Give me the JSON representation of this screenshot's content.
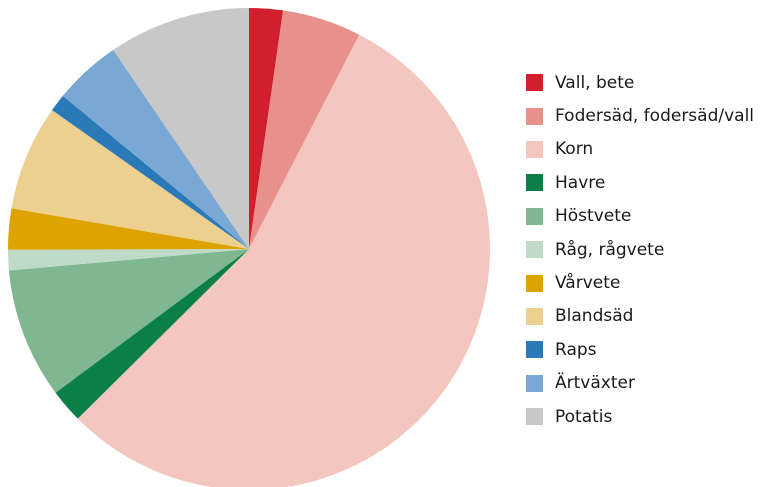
{
  "chart_data": {
    "type": "pie",
    "title": "",
    "legend_position": "right",
    "series": [
      {
        "name": "Vall, bete",
        "value": 2.3,
        "color": "#d21f2d"
      },
      {
        "name": "Fodersäd, fodersäd/vall",
        "value": 5.4,
        "color": "#e8918a"
      },
      {
        "name": "Korn",
        "value": 56.0,
        "color": "#f3c6bf"
      },
      {
        "name": "Havre",
        "value": 2.3,
        "color": "#0a8048"
      },
      {
        "name": "Höstvete",
        "value": 8.9,
        "color": "#7fb791"
      },
      {
        "name": "Råg, rågvete",
        "value": 1.4,
        "color": "#bfdbc8"
      },
      {
        "name": "Vårvete",
        "value": 2.8,
        "color": "#dca303"
      },
      {
        "name": "Blandsäd",
        "value": 7.2,
        "color": "#edd08f"
      },
      {
        "name": "Raps",
        "value": 1.2,
        "color": "#2a7ab8"
      },
      {
        "name": "Ärtväxter",
        "value": 4.6,
        "color": "#7aa8d4"
      },
      {
        "name": "Potatis",
        "value": 9.7,
        "color": "#c8c8c8"
      }
    ]
  }
}
